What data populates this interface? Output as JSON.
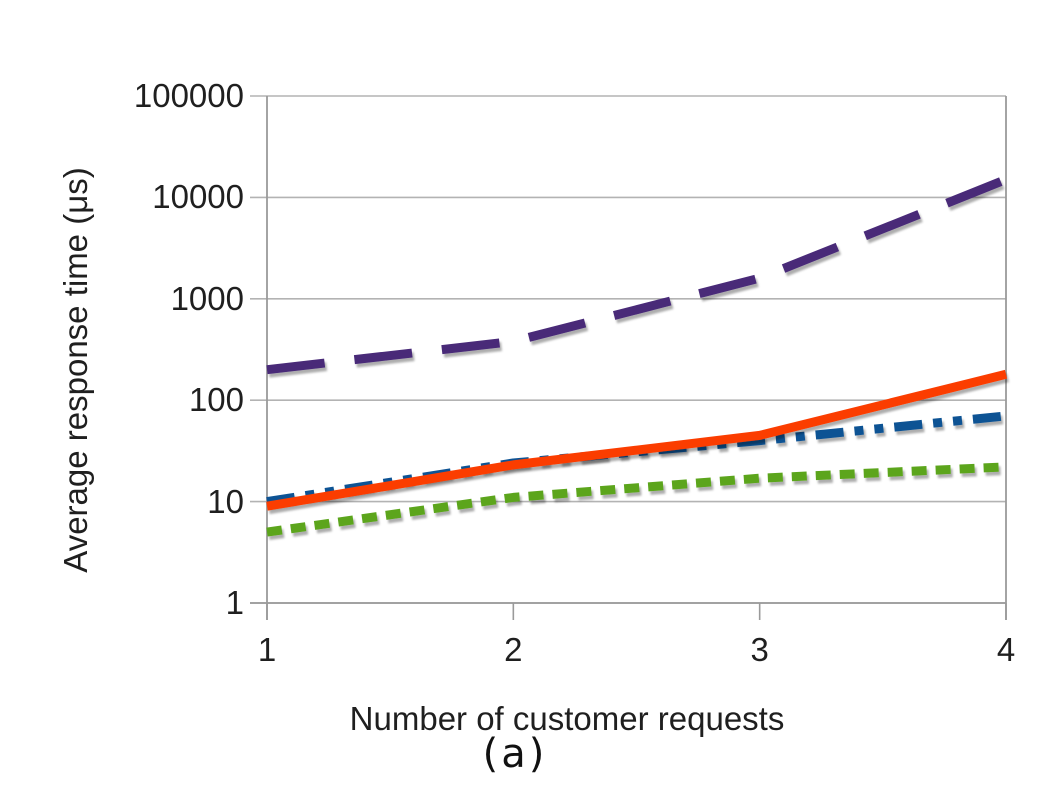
{
  "figure": {
    "caption": "(a)"
  },
  "chart_data": {
    "type": "line",
    "title": "",
    "xlabel": "Number of customer requests",
    "ylabel": "Average response time (μs)",
    "x": [
      1,
      2,
      3,
      4
    ],
    "xlim": [
      1,
      4
    ],
    "x_tick_labels": [
      "1",
      "2",
      "3",
      "4"
    ],
    "y_scale": "log10",
    "ylim": [
      1,
      100000
    ],
    "y_tick_values": [
      1,
      10,
      100,
      1000,
      10000,
      100000
    ],
    "y_tick_labels": [
      "1",
      "10",
      "100",
      "1000",
      "10000",
      "100000"
    ],
    "grid": "horizontal-only",
    "legend_position": "none",
    "series": [
      {
        "name": "green-square-dot-line",
        "color": "#5ca51e",
        "dash": "15 9",
        "line_style": "square-dot",
        "values": [
          5,
          11,
          17,
          22
        ]
      },
      {
        "name": "blue-dash-dot-dot-line",
        "color": "#0e5394",
        "dash": "28 11 9 11 9 11",
        "line_style": "dash-dot-dot",
        "values": [
          10,
          24,
          40,
          70
        ]
      },
      {
        "name": "orange-solid-line",
        "color": "#fb3e03",
        "dash": "",
        "line_style": "solid",
        "values": [
          9,
          23,
          45,
          180
        ]
      },
      {
        "name": "purple-long-dash-line",
        "color": "#482a78",
        "dash": "58 30",
        "line_style": "long-dash",
        "values": [
          200,
          380,
          1600,
          15000
        ]
      }
    ],
    "style_colors": {
      "gridline": "#b3b3b3",
      "axis": "#9a9a9a",
      "text": "#1f1f1f"
    }
  }
}
